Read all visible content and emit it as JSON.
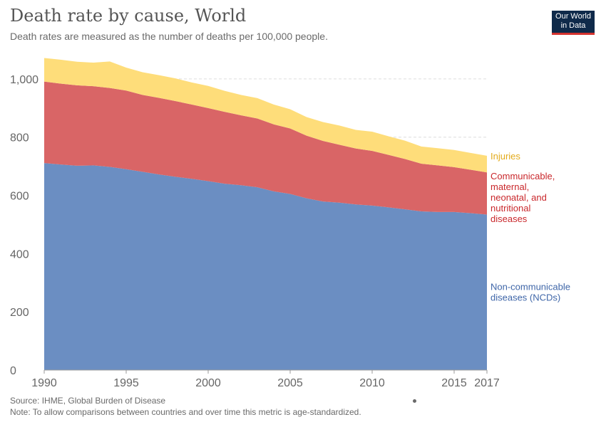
{
  "header": {
    "title": "Death rate by cause, World",
    "subtitle": "Death rates are measured as the number of deaths per 100,000 people.",
    "logo_line1": "Our World",
    "logo_line2": "in Data"
  },
  "footer": {
    "source": "Source: IHME, Global Burden of Disease",
    "note": "Note: To allow comparisons between countries and over time this metric is age-standardized."
  },
  "colors": {
    "ncd": "#6b8ec2",
    "communicable": "#d96566",
    "injuries": "#fedd7a",
    "ncd_label": "#3f66a8",
    "communicable_label": "#c9272b",
    "injuries_label": "#e3ab1b",
    "grid": "#dddddd",
    "axis_text": "#666666"
  },
  "chart_data": {
    "type": "area",
    "stacked": true,
    "x": [
      1990,
      1991,
      1992,
      1993,
      1994,
      1995,
      1996,
      1997,
      1998,
      1999,
      2000,
      2001,
      2002,
      2003,
      2004,
      2005,
      2006,
      2007,
      2008,
      2009,
      2010,
      2011,
      2012,
      2013,
      2014,
      2015,
      2016,
      2017
    ],
    "series": [
      {
        "name": "Non-communicable diseases (NCDs)",
        "label_lines": [
          "Non-communicable",
          "diseases (NCDs)"
        ],
        "values": [
          711,
          706,
          702,
          703,
          698,
          690,
          681,
          672,
          664,
          657,
          649,
          640,
          635,
          628,
          614,
          605,
          590,
          579,
          575,
          569,
          565,
          559,
          552,
          545,
          543,
          543,
          539,
          534
        ]
      },
      {
        "name": "Communicable, maternal, neonatal, and nutritional diseases",
        "label_lines": [
          "Communicable,",
          "maternal,",
          "neonatal, and",
          "nutritional",
          "diseases"
        ],
        "values": [
          280,
          278,
          276,
          272,
          271,
          270,
          264,
          263,
          260,
          255,
          251,
          247,
          240,
          236,
          230,
          225,
          215,
          208,
          199,
          192,
          188,
          180,
          173,
          164,
          160,
          154,
          149,
          145
        ]
      },
      {
        "name": "Injuries",
        "label_lines": [
          "Injuries"
        ],
        "values": [
          81,
          82,
          81,
          81,
          91,
          79,
          78,
          78,
          78,
          76,
          76,
          72,
          70,
          70,
          68,
          66,
          64,
          65,
          66,
          64,
          66,
          64,
          63,
          59,
          59,
          59,
          58,
          57
        ]
      }
    ],
    "ylim": [
      0,
      1100
    ],
    "yticks": [
      0,
      200,
      400,
      600,
      800,
      1000
    ],
    "ytick_labels": [
      "0",
      "200",
      "400",
      "600",
      "800",
      "1,000"
    ],
    "xticks": [
      1990,
      1995,
      2000,
      2005,
      2010,
      2015,
      2017
    ],
    "xtick_labels": [
      "1990",
      "1995",
      "2000",
      "2005",
      "2010",
      "2015",
      "2017"
    ],
    "grid": true
  }
}
